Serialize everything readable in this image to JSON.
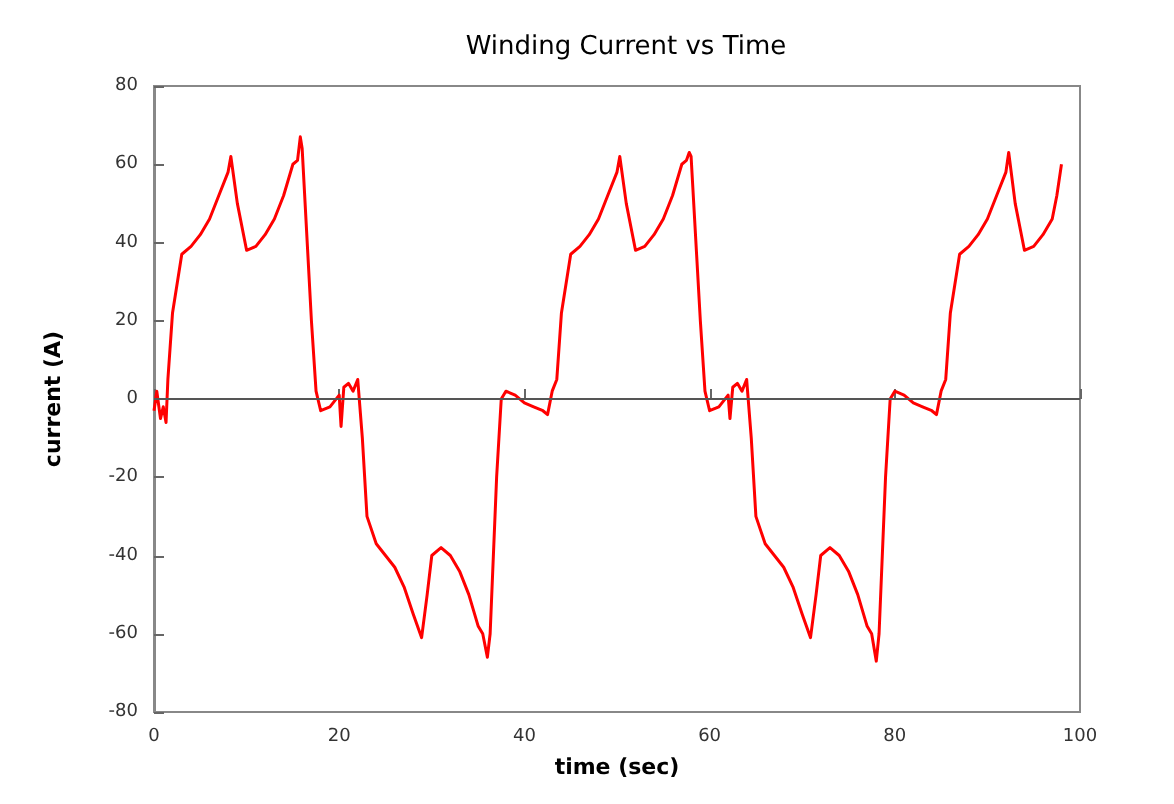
{
  "chart_data": {
    "type": "line",
    "title": "Winding Current vs Time",
    "xlabel": "time (sec)",
    "ylabel": "current (A)",
    "xlim": [
      0,
      100
    ],
    "xticks": [
      0,
      20,
      40,
      60,
      80,
      100
    ],
    "ylim": [
      -80,
      80
    ],
    "yticks": [
      -80,
      -60,
      -40,
      -20,
      0,
      20,
      40,
      60,
      80
    ],
    "grid": false,
    "marker": "none",
    "line_style": "solid",
    "ref_lines": [
      {
        "axis": "y",
        "value": 0,
        "color": "#555555"
      }
    ],
    "series": [
      {
        "color": "#ff0000",
        "x": [
          0,
          0.3,
          0.7,
          1,
          1.3,
          1.5,
          2,
          3,
          4,
          5,
          6,
          7,
          8,
          8.3,
          9,
          10,
          11,
          12,
          13,
          14,
          15,
          15.5,
          15.8,
          16,
          17,
          17.5,
          18,
          19,
          20,
          20.2,
          20.5,
          21,
          21.5,
          22,
          22.5,
          23,
          24,
          25,
          26,
          27,
          28,
          28.9,
          29.5,
          30,
          31,
          32,
          33,
          34,
          35,
          35.5,
          36,
          36.3,
          37,
          37.5,
          38,
          39,
          40,
          41,
          42,
          42.5,
          43,
          43.5,
          44,
          45,
          46,
          47,
          48,
          49,
          50,
          50.3,
          51,
          52,
          53,
          54,
          55,
          56,
          57,
          57.5,
          57.8,
          58,
          59,
          59.5,
          60,
          61,
          62,
          62.2,
          62.5,
          63,
          63.5,
          64,
          64.5,
          65,
          66,
          67,
          68,
          69,
          70,
          70.9,
          71.5,
          72,
          73,
          74,
          75,
          76,
          77,
          77.5,
          78,
          78.3,
          79,
          79.5,
          80,
          81,
          82,
          83,
          84,
          84.5,
          85,
          85.5,
          86,
          87,
          88,
          89,
          90,
          91,
          92,
          92.3,
          93,
          94,
          95,
          96,
          97,
          97.5,
          98
        ],
        "values": [
          -3,
          2,
          -5,
          -2,
          -6,
          5,
          22,
          37,
          39,
          42,
          46,
          52,
          58,
          62,
          50,
          38,
          39,
          42,
          46,
          52,
          60,
          61,
          67,
          64,
          20,
          2,
          -3,
          -2,
          1,
          -7,
          3,
          4,
          2,
          5,
          -10,
          -30,
          -37,
          -40,
          -43,
          -48,
          -55,
          -61,
          -50,
          -40,
          -38,
          -40,
          -44,
          -50,
          -58,
          -60,
          -66,
          -60,
          -20,
          0,
          2,
          1,
          -1,
          -2,
          -3,
          -4,
          2,
          5,
          22,
          37,
          39,
          42,
          46,
          52,
          58,
          62,
          50,
          38,
          39,
          42,
          46,
          52,
          60,
          61,
          63,
          62,
          20,
          2,
          -3,
          -2,
          1,
          -5,
          3,
          4,
          2,
          5,
          -10,
          -30,
          -37,
          -40,
          -43,
          -48,
          -55,
          -61,
          -50,
          -40,
          -38,
          -40,
          -44,
          -50,
          -58,
          -60,
          -67,
          -60,
          -20,
          0,
          2,
          1,
          -1,
          -2,
          -3,
          -4,
          2,
          5,
          22,
          37,
          39,
          42,
          46,
          52,
          58,
          63,
          50,
          38,
          39,
          42,
          46,
          52,
          60
        ]
      }
    ]
  }
}
